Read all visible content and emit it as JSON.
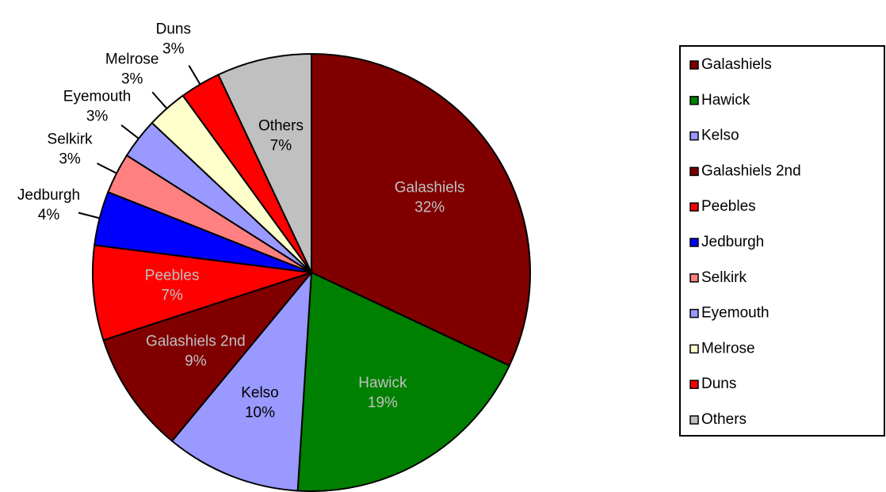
{
  "chart_data": {
    "type": "pie",
    "categories": [
      "Galashiels",
      "Hawick",
      "Kelso",
      "Galashiels 2nd",
      "Peebles",
      "Jedburgh",
      "Selkirk",
      "Eyemouth",
      "Melrose",
      "Duns",
      "Others"
    ],
    "values": [
      32,
      19,
      10,
      9,
      7,
      4,
      3,
      3,
      3,
      3,
      7
    ],
    "value_labels": [
      "32%",
      "19%",
      "10%",
      "9%",
      "7%",
      "4%",
      "3%",
      "3%",
      "3%",
      "3%",
      "7%"
    ],
    "colors": [
      "#800000",
      "#008000",
      "#9999ff",
      "#800000",
      "#ff0000",
      "#0000ff",
      "#ff8080",
      "#9999ff",
      "#ffffcc",
      "#ff0000",
      "#c0c0c0"
    ],
    "legend": "right"
  }
}
